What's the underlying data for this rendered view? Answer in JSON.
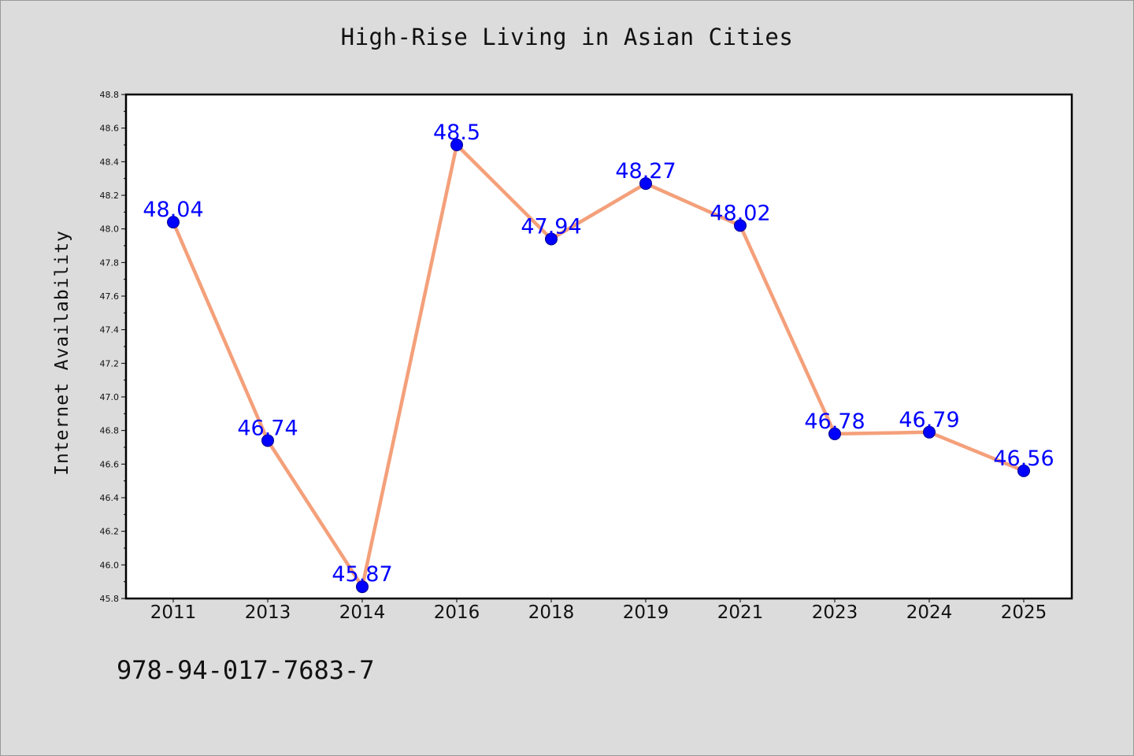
{
  "chart_data": {
    "type": "line",
    "title": "High-Rise Living in Asian Cities",
    "xlabel": "",
    "ylabel": "Internet Availability",
    "categories": [
      "2011",
      "2013",
      "2014",
      "2016",
      "2018",
      "2019",
      "2021",
      "2023",
      "2024",
      "2025"
    ],
    "series": [
      {
        "values": [
          48.04,
          46.74,
          45.87,
          48.5,
          47.94,
          48.27,
          48.02,
          46.78,
          46.79,
          46.56
        ],
        "data_labels": [
          "48.04",
          "46.74",
          "45.87",
          "48.5",
          "47.94",
          "48.27",
          "48.02",
          "46.78",
          "46.79",
          "46.56"
        ]
      }
    ],
    "y_ticks": [
      "45.8",
      "46.0",
      "46.2",
      "46.4",
      "46.6",
      "46.8",
      "47.0",
      "47.2",
      "47.4",
      "47.6",
      "47.8",
      "48.0",
      "48.2",
      "48.4",
      "48.6",
      "48.8"
    ],
    "ylim": [
      45.8,
      48.8
    ],
    "grid": false,
    "colors": {
      "line": "#f4a07a",
      "marker": "#0000ff",
      "data_label": "#0000ff",
      "background": "#dcdcdc",
      "plot_background": "#ffffff"
    }
  },
  "footer": {
    "code": "978-94-017-7683-7"
  }
}
